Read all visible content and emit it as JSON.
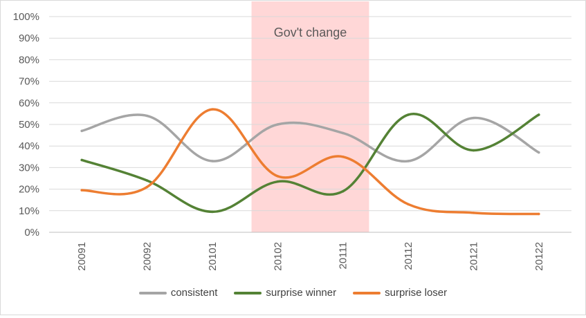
{
  "chart_data": {
    "type": "line",
    "title": "",
    "xlabel": "",
    "ylabel": "",
    "ylim": [
      0,
      100
    ],
    "y_tick_labels": [
      "0%",
      "10%",
      "20%",
      "30%",
      "40%",
      "50%",
      "60%",
      "70%",
      "80%",
      "90%",
      "100%"
    ],
    "categories": [
      "20091",
      "20092",
      "20101",
      "20102",
      "20111",
      "20112",
      "20121",
      "20122"
    ],
    "series": [
      {
        "name": "consistent",
        "color": "#a5a5a5",
        "values": [
          47,
          54,
          33,
          50,
          46,
          33,
          53,
          37
        ]
      },
      {
        "name": "surprise winner",
        "color": "#548235",
        "values": [
          33.5,
          24,
          9.5,
          23.5,
          19,
          54.5,
          38,
          54.5
        ]
      },
      {
        "name": "surprise loser",
        "color": "#ed7d31",
        "values": [
          19.5,
          21,
          57,
          26,
          35,
          13,
          9,
          8.5
        ]
      }
    ],
    "highlight": {
      "label": "Gov't change",
      "from_category": "20102",
      "to_category": "20111",
      "color": "#ffd7d7"
    },
    "grid": true,
    "legend_position": "bottom"
  }
}
